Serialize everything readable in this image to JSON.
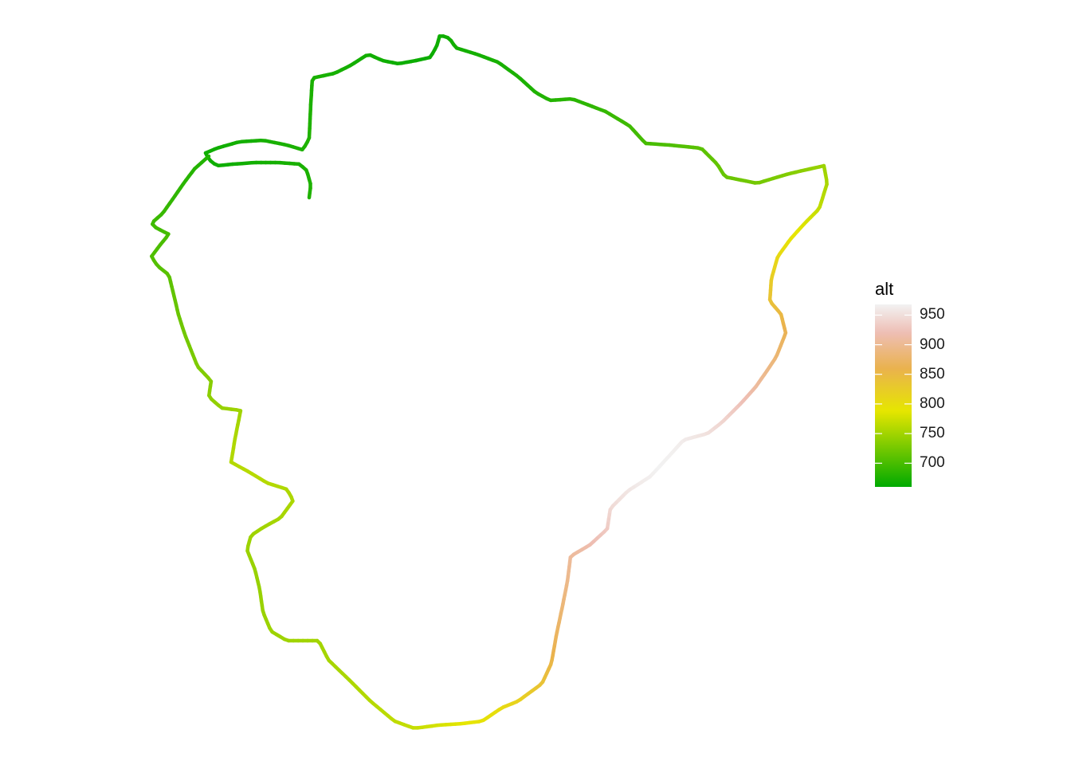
{
  "chart_data": {
    "type": "path",
    "title": "",
    "legend": {
      "title": "alt",
      "placement": "right",
      "range": [
        660,
        968
      ],
      "ticks": [
        700,
        750,
        800,
        850,
        900,
        950
      ],
      "tick_labels": [
        "700",
        "750",
        "800",
        "850",
        "900",
        "950"
      ],
      "colors": [
        "#00aa00",
        "#e6e600",
        "#eab24e",
        "#eebeb4",
        "#f2f2f2"
      ],
      "color_stops": [
        660,
        788,
        860,
        920,
        968
      ]
    },
    "grid": false,
    "axes": false,
    "series": [
      {
        "values": [
          678,
          675,
          672,
          670,
          668,
          668,
          670,
          672,
          675,
          678,
          676,
          674,
          672,
          670,
          668,
          666,
          668,
          670,
          672,
          674,
          676,
          680,
          684,
          690,
          696,
          700,
          706,
          712,
          718,
          724,
          730,
          740,
          752,
          766,
          784,
          800,
          820,
          840,
          860,
          880,
          900,
          920,
          940,
          955,
          965,
          968,
          960,
          948,
          930,
          912,
          900,
          888,
          875,
          860,
          840,
          820,
          800,
          790,
          780,
          770,
          765,
          760,
          755,
          752,
          750,
          748,
          746,
          744,
          745,
          748,
          752,
          756,
          760,
          762,
          758,
          752,
          744,
          736,
          730,
          724,
          718,
          712,
          706,
          700,
          694,
          688,
          682,
          678
        ]
      }
    ]
  }
}
